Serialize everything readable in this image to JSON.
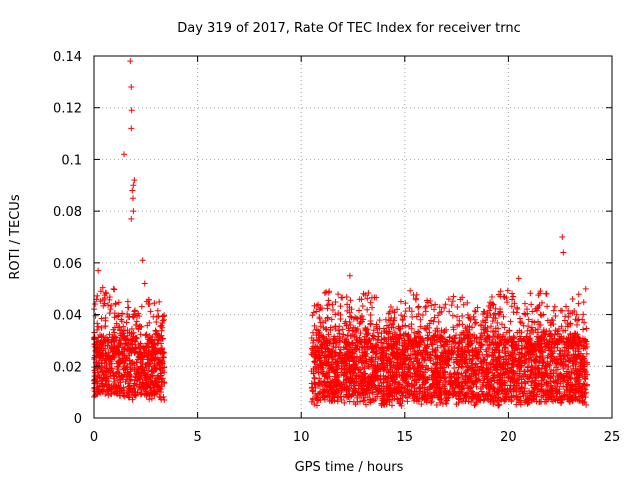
{
  "chart_data": {
    "type": "scatter",
    "title": "Day 319 of 2017, Rate Of TEC Index for receiver trnc",
    "xlabel": "GPS time / hours",
    "ylabel": "ROTI / TECUs",
    "xlim": [
      0,
      25
    ],
    "ylim": [
      0,
      0.14
    ],
    "x_ticks": [
      0,
      5,
      10,
      15,
      20,
      25
    ],
    "y_ticks": [
      0,
      0.02,
      0.04,
      0.06,
      0.08,
      0.1,
      0.12,
      0.14
    ],
    "x_tick_labels": [
      "0",
      "5",
      "10",
      "15",
      "20",
      "25"
    ],
    "y_tick_labels": [
      "0",
      "0.02",
      "0.04",
      "0.06",
      "0.08",
      "0.1",
      "0.12",
      "0.14"
    ],
    "grid": true,
    "marker": "+",
    "color": "#ff0000",
    "series": [
      {
        "name": "ROTI",
        "segments": [
          {
            "x_start": 0.0,
            "x_end": 3.4,
            "baseline_low": 0.008,
            "baseline_high": 0.03
          },
          {
            "x_start": 10.5,
            "x_end": 23.8,
            "baseline_low": 0.006,
            "baseline_high": 0.03
          }
        ],
        "notable_points": [
          {
            "x": 1.75,
            "y": 0.138
          },
          {
            "x": 1.8,
            "y": 0.128
          },
          {
            "x": 1.82,
            "y": 0.119
          },
          {
            "x": 1.8,
            "y": 0.112
          },
          {
            "x": 1.45,
            "y": 0.102
          },
          {
            "x": 1.95,
            "y": 0.092
          },
          {
            "x": 1.9,
            "y": 0.09
          },
          {
            "x": 1.85,
            "y": 0.088
          },
          {
            "x": 1.88,
            "y": 0.085
          },
          {
            "x": 1.9,
            "y": 0.08
          },
          {
            "x": 1.8,
            "y": 0.077
          },
          {
            "x": 2.35,
            "y": 0.061
          },
          {
            "x": 0.2,
            "y": 0.057
          },
          {
            "x": 2.45,
            "y": 0.052
          },
          {
            "x": 22.6,
            "y": 0.07
          },
          {
            "x": 22.65,
            "y": 0.064
          },
          {
            "x": 12.35,
            "y": 0.055
          },
          {
            "x": 20.5,
            "y": 0.054
          },
          {
            "x": 11.35,
            "y": 0.049
          },
          {
            "x": 17.35,
            "y": 0.047
          },
          {
            "x": 21.85,
            "y": 0.048
          },
          {
            "x": 23.1,
            "y": 0.046
          }
        ]
      }
    ]
  }
}
